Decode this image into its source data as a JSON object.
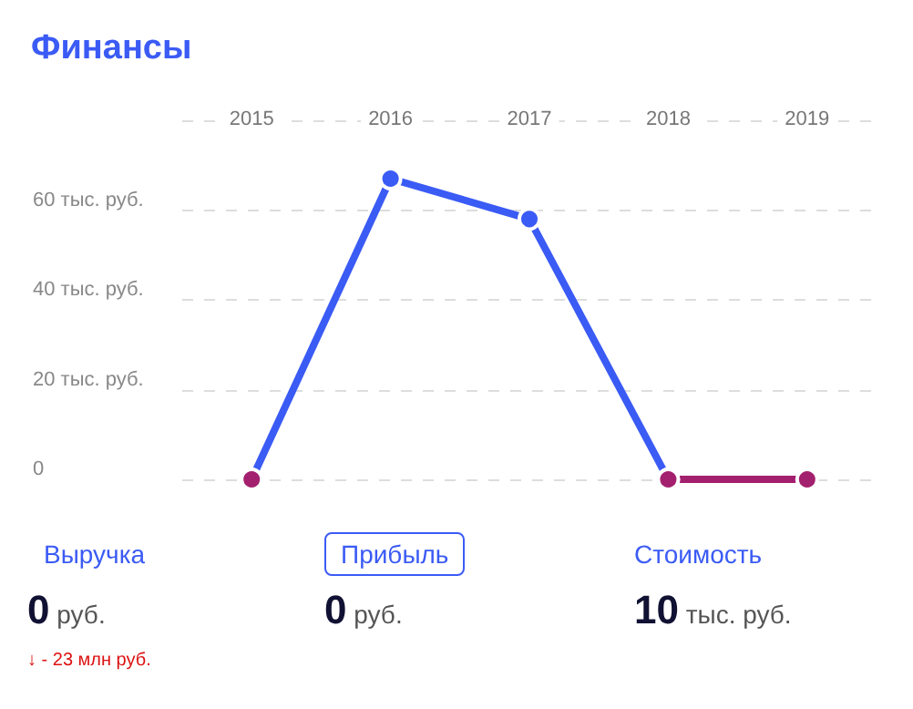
{
  "chart_data": [
    {
      "type": "line",
      "title": "Финансы",
      "categories": [
        "2015",
        "2016",
        "2017",
        "2018",
        "2019"
      ],
      "series": [
        {
          "color": "#3b5bf5",
          "colors": [
            "#a3206e",
            "#3b5bf5",
            "#3b5bf5",
            "#a3206e",
            null
          ],
          "values": [
            0,
            67,
            58,
            0,
            null
          ]
        },
        {
          "color": "#a3206e",
          "colors": [
            null,
            null,
            null,
            "#a3206e",
            "#a3206e"
          ],
          "values": [
            null,
            null,
            null,
            0,
            0
          ]
        }
      ],
      "ylim": [
        0,
        80
      ],
      "yticks": [
        {
          "value": 0,
          "label": "0"
        },
        {
          "value": 20,
          "label": "20 тыс. руб."
        },
        {
          "value": 40,
          "label": "40 тыс. руб."
        },
        {
          "value": 60,
          "label": "60 тыс. руб."
        },
        {
          "value": 80,
          "label": null
        }
      ],
      "grid": "y",
      "marker": "circle",
      "line_style": "solid"
    },
    {
      "type": "other",
      "annotations": [
        "Выручка",
        "Прибыль",
        "Стоимость",
        "0 руб.",
        "0 руб.",
        "10 тыс. руб.",
        "↓ - 23 млн руб."
      ]
    }
  ]
}
